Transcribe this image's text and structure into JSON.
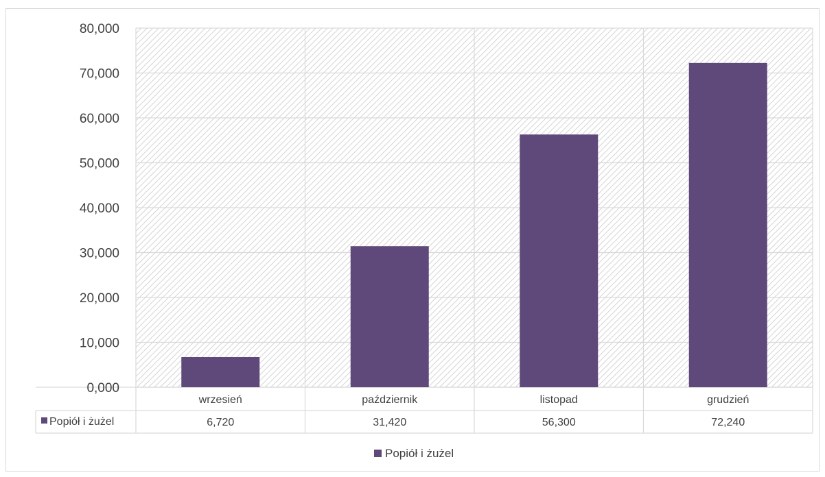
{
  "chart_data": {
    "type": "bar",
    "categories": [
      "wrzesień",
      "październik",
      "listopad",
      "grudzień"
    ],
    "series": [
      {
        "name": "Popiół i żużel",
        "values": [
          6.72,
          31.42,
          56.3,
          72.24
        ],
        "color": "#5f497a"
      }
    ],
    "ylim": [
      0,
      80
    ],
    "yticks": [
      0,
      10,
      20,
      30,
      40,
      50,
      60,
      70,
      80
    ],
    "ytick_labels": [
      "0,000",
      "10,000",
      "20,000",
      "30,000",
      "40,000",
      "50,000",
      "60,000",
      "70,000",
      "80,000"
    ],
    "data_table": {
      "row_label": "Popiół i żużel",
      "values": [
        "6,720",
        "31,420",
        "56,300",
        "72,240"
      ]
    },
    "legend": {
      "position": "bottom",
      "entries": [
        "Popiół i żużel"
      ]
    },
    "grid": true,
    "plot_background": "hatched-light-gray",
    "title": "",
    "xlabel": "",
    "ylabel": ""
  }
}
